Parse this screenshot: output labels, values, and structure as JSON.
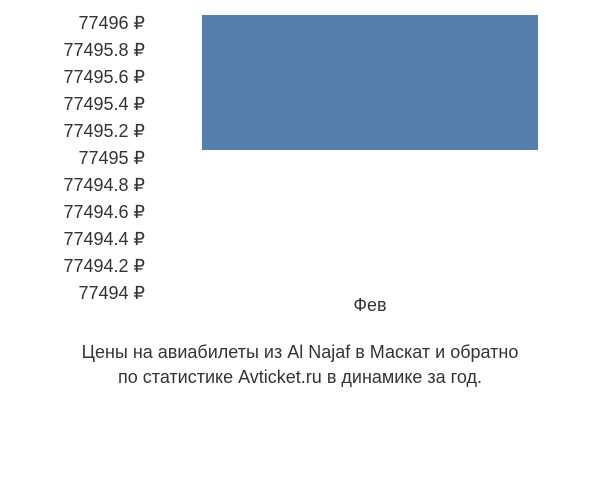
{
  "chart": {
    "type": "bar",
    "y_ticks": [
      "77496 ₽",
      "77495.8 ₽",
      "77495.6 ₽",
      "77495.4 ₽",
      "77495.2 ₽",
      "77495 ₽",
      "77494.8 ₽",
      "77494.6 ₽",
      "77494.4 ₽",
      "77494.2 ₽",
      "77494 ₽"
    ],
    "y_min": 77494,
    "y_max": 77496,
    "x_labels": [
      "Фев"
    ],
    "series": [
      {
        "category": "Фев",
        "value": 77496,
        "baseline": 77495,
        "color": "#5580ad"
      }
    ],
    "bar": {
      "left_pct": 10,
      "width_pct": 80,
      "top_pct": 0,
      "height_pct": 50,
      "color": "#5580ad"
    },
    "background_color": "#ffffff",
    "tick_color": "#333333",
    "tick_fontsize": 18
  },
  "caption": {
    "line1": "Цены на авиабилеты из Al Najaf в Маскат и обратно",
    "line2": "по статистике Avticket.ru в динамике за год."
  }
}
